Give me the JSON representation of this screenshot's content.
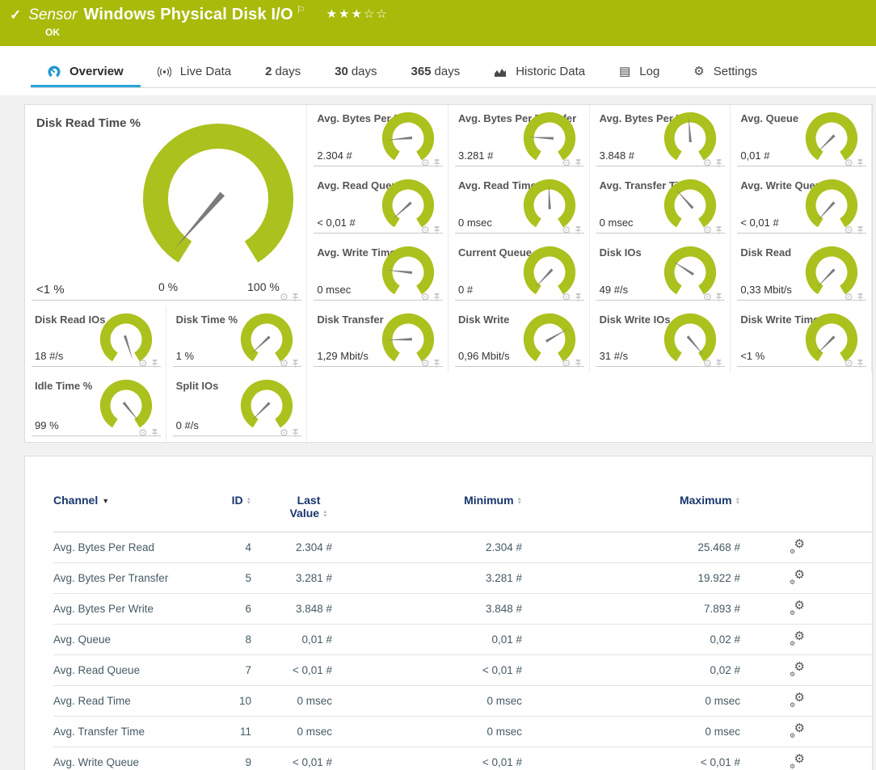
{
  "colors": {
    "brand_green": "#a9ba0b",
    "gauge_green": "#abc11d",
    "accent_blue": "#2aa4dd",
    "table_header_navy": "#17356e"
  },
  "header": {
    "check_icon": "✓",
    "kind_label": "Sensor",
    "title": "Windows Physical Disk I/O",
    "flag_icon": "⚐",
    "rating_stars": "★★★☆☆",
    "status": "OK"
  },
  "tabs": [
    {
      "prefix": "",
      "label": "Overview",
      "active": true
    },
    {
      "prefix": "",
      "label": "Live Data",
      "active": false
    },
    {
      "prefix": "2",
      "label": "days",
      "active": false
    },
    {
      "prefix": "30",
      "label": "days",
      "active": false
    },
    {
      "prefix": "365",
      "label": "days",
      "active": false
    },
    {
      "prefix": "",
      "label": "Historic Data",
      "active": false
    },
    {
      "prefix": "",
      "label": "Log",
      "active": false
    },
    {
      "prefix": "",
      "label": "Settings",
      "active": false
    }
  ],
  "icons": {
    "log_glyph": "▤",
    "gear_glyph": "⚙"
  },
  "gauges": {
    "main": {
      "title": "Disk Read Time %",
      "value": "<1 %",
      "scale_min": "0 %",
      "scale_max": "100 %",
      "angle": -139
    },
    "small": [
      {
        "title": "Avg. Bytes Per Read",
        "value": "2.304 #",
        "angle": -95
      },
      {
        "title": "Avg. Bytes Per Transfer",
        "value": "3.281 #",
        "angle": -87
      },
      {
        "title": "Avg. Bytes Per Write",
        "value": "3.848 #",
        "angle": -4
      },
      {
        "title": "Avg. Queue",
        "value": "0,01 #",
        "angle": -135
      },
      {
        "title": "Avg. Read Queue",
        "value": "< 0,01 #",
        "angle": -132
      },
      {
        "title": "Avg. Read Time",
        "value": "0 msec",
        "angle": -2
      },
      {
        "title": "Avg. Transfer Time",
        "value": "0 msec",
        "angle": -42
      },
      {
        "title": "Avg. Write Queue",
        "value": "< 0,01 #",
        "angle": -138
      },
      {
        "title": "Avg. Write Time",
        "value": "0 msec",
        "angle": -84
      },
      {
        "title": "Current Queue",
        "value": "0 #",
        "angle": -137
      },
      {
        "title": "Disk IOs",
        "value": "49 #/s",
        "angle": -57
      },
      {
        "title": "Disk Read",
        "value": "0,33 Mbit/s",
        "angle": -136
      },
      {
        "title": "Disk Read IOs",
        "value": "18 #/s",
        "angle": 162
      },
      {
        "title": "Disk Time %",
        "value": "1 %",
        "angle": -133
      },
      {
        "title": "Disk Transfer",
        "value": "1,29 Mbit/s",
        "angle": -92
      },
      {
        "title": "Disk Write",
        "value": "0,96 Mbit/s",
        "angle": 60
      },
      {
        "title": "Disk Write IOs",
        "value": "31 #/s",
        "angle": 140
      },
      {
        "title": "Disk Write Time %",
        "value": "<1 %",
        "angle": -135
      },
      {
        "title": "Idle Time %",
        "value": "99 %",
        "angle": 141
      },
      {
        "title": "Split IOs",
        "value": "0 #/s",
        "angle": -135
      }
    ]
  },
  "table": {
    "headers": {
      "channel": "Channel",
      "id": "ID",
      "last_value": "Last Value",
      "minimum": "Minimum",
      "maximum": "Maximum"
    },
    "rows": [
      {
        "channel": "Avg. Bytes Per Read",
        "id": "4",
        "last": "2.304 #",
        "min": "2.304 #",
        "max": "25.468 #"
      },
      {
        "channel": "Avg. Bytes Per Transfer",
        "id": "5",
        "last": "3.281 #",
        "min": "3.281 #",
        "max": "19.922 #"
      },
      {
        "channel": "Avg. Bytes Per Write",
        "id": "6",
        "last": "3.848 #",
        "min": "3.848 #",
        "max": "7.893 #"
      },
      {
        "channel": "Avg. Queue",
        "id": "8",
        "last": "0,01 #",
        "min": "0,01 #",
        "max": "0,02 #"
      },
      {
        "channel": "Avg. Read Queue",
        "id": "7",
        "last": "< 0,01 #",
        "min": "< 0,01 #",
        "max": "0,02 #"
      },
      {
        "channel": "Avg. Read Time",
        "id": "10",
        "last": "0 msec",
        "min": "0 msec",
        "max": "0 msec"
      },
      {
        "channel": "Avg. Transfer Time",
        "id": "11",
        "last": "0 msec",
        "min": "0 msec",
        "max": "0 msec"
      },
      {
        "channel": "Avg. Write Queue",
        "id": "9",
        "last": "< 0,01 #",
        "min": "< 0,01 #",
        "max": "< 0,01 #"
      }
    ]
  }
}
